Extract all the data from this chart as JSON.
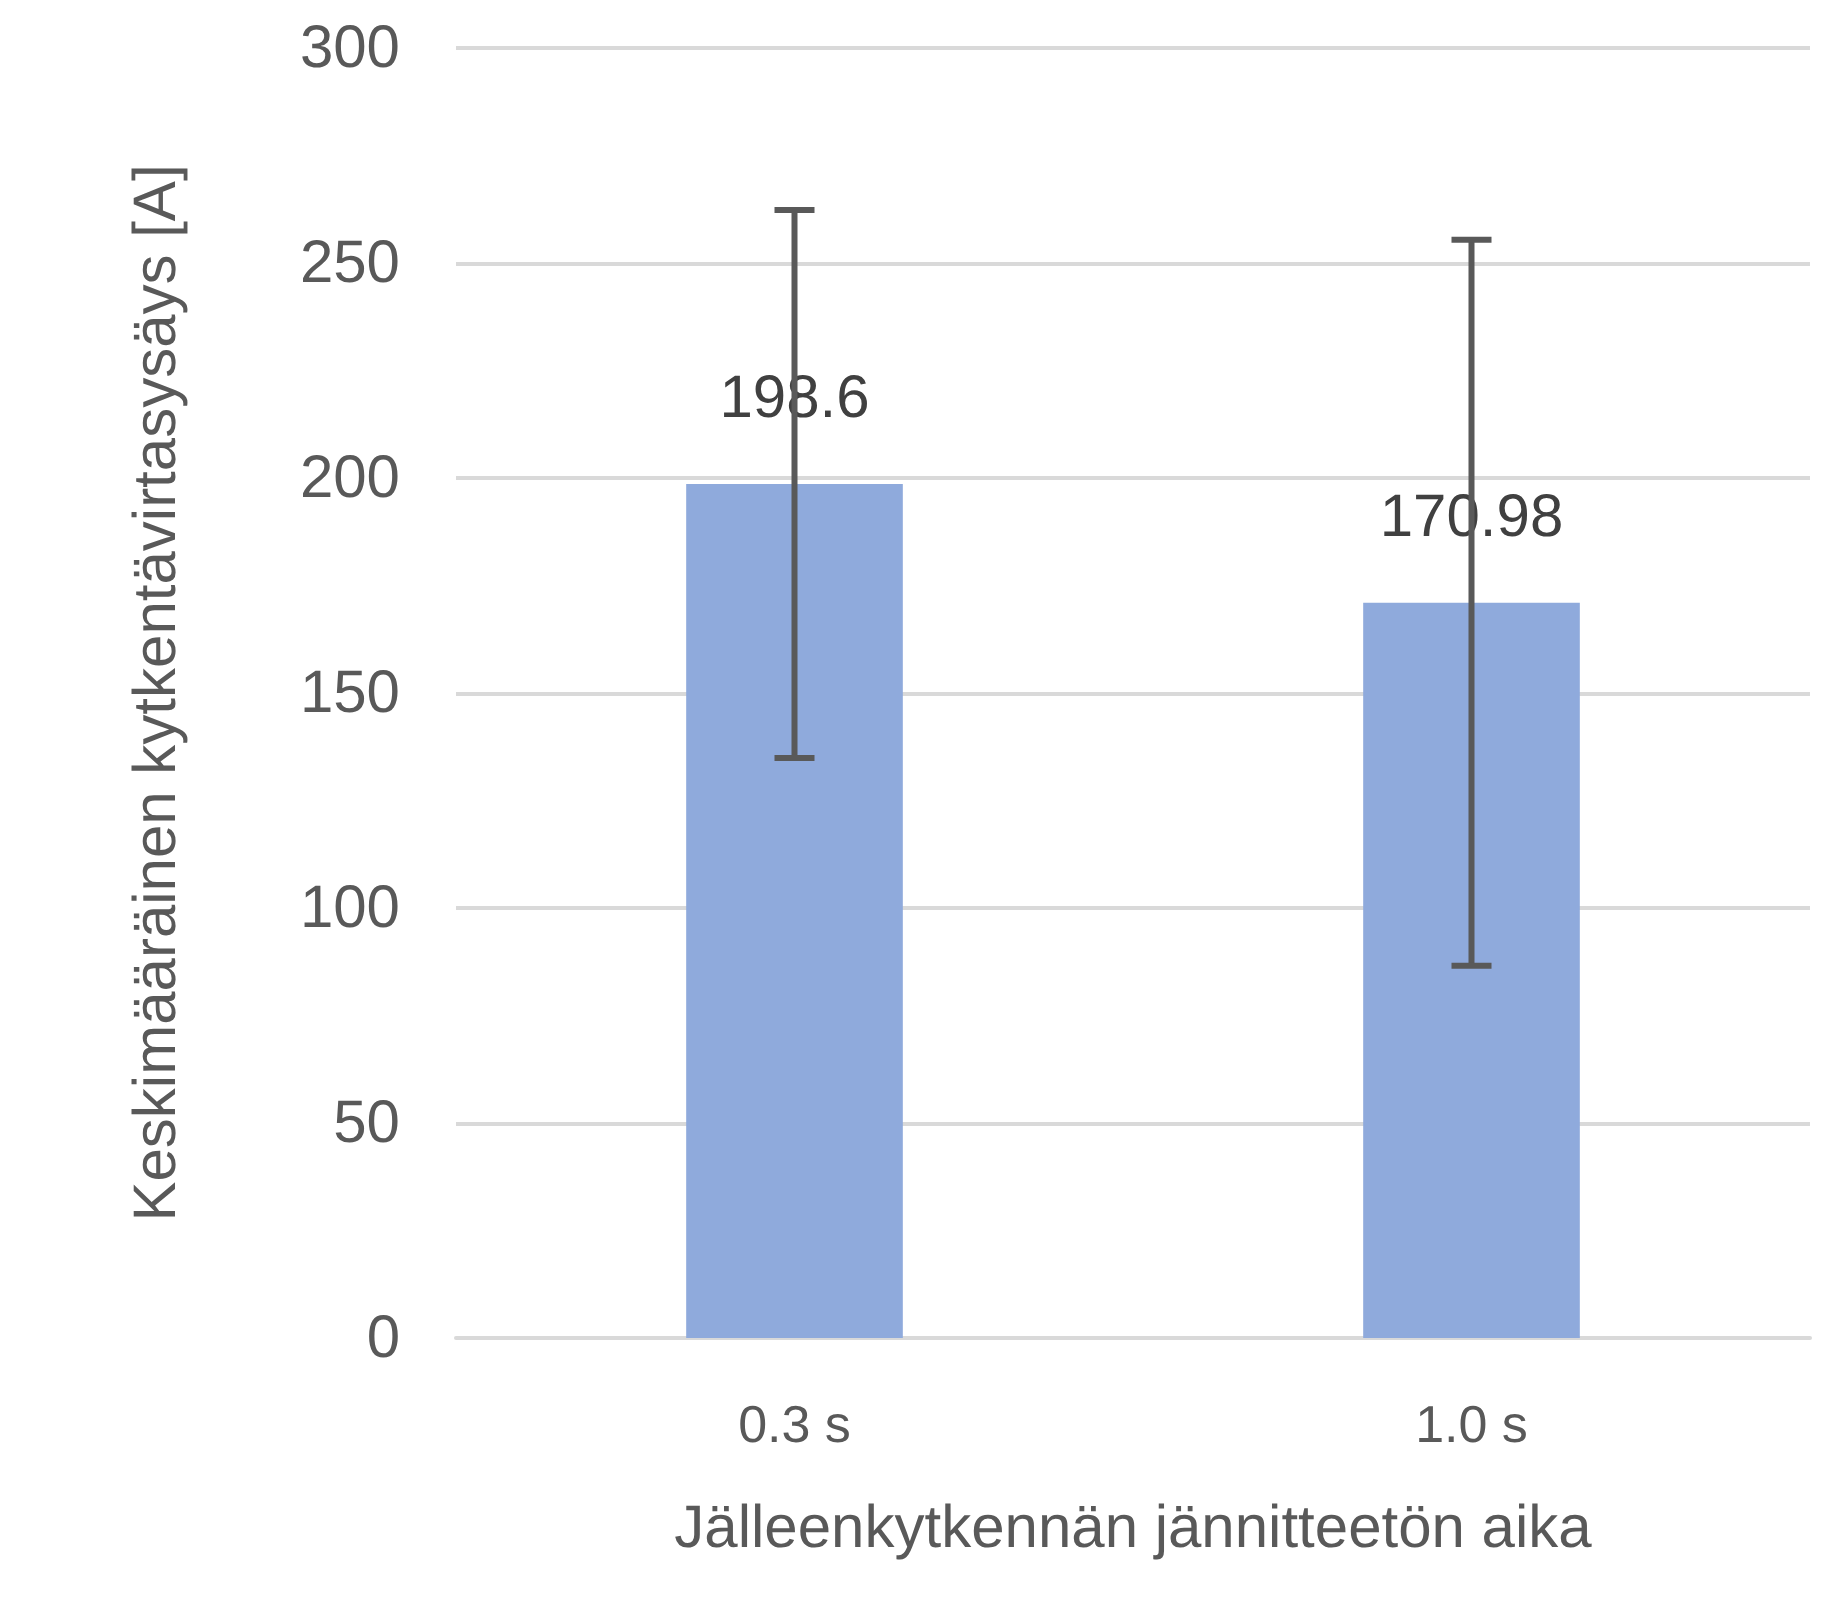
{
  "chart_data": {
    "type": "bar",
    "xlabel": "Jälleenkytkennän jännitteetön aika",
    "ylabel": "Keskimääräinen kytkentävirtasysäys [A]",
    "categories": [
      "0.3 s",
      "1.0 s"
    ],
    "values": [
      198.6,
      170.98
    ],
    "errors": [
      63.7,
      84.4
    ],
    "color": "#8faadc",
    "ylim": [
      0,
      300
    ],
    "yticks": [
      0,
      50,
      100,
      150,
      200,
      250,
      300
    ],
    "grid": "y",
    "data_labels": true
  }
}
